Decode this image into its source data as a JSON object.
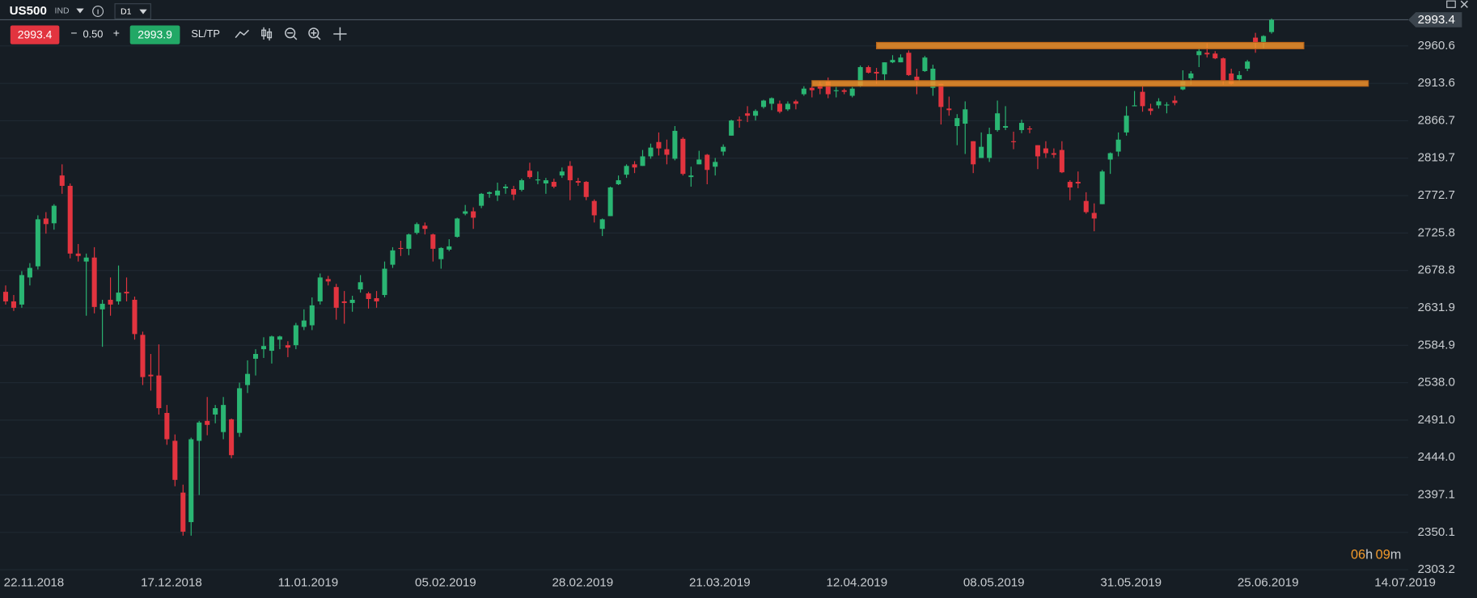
{
  "toolbar": {
    "symbol": "US500",
    "market": "IND",
    "timeframe": "D1",
    "sell": "2993.4",
    "minus": "−",
    "spread": "0.50",
    "plus": "+",
    "buy": "2993.9",
    "sltp": "SL/TP"
  },
  "countdown": {
    "hours": "06",
    "h": "h",
    "minutes": "09",
    "m": "m"
  },
  "chart_data": {
    "type": "candlestick",
    "up_color": "#2ab673",
    "down_color": "#e2343f",
    "grid": true,
    "last_price": 2993.4,
    "ylim": [
      2297.3,
      2993.4
    ],
    "yticks": [
      2303.2,
      2350.1,
      2397.1,
      {
        "value": 2444,
        "label": "2444.0"
      },
      {
        "value": 2491,
        "label": "2491.0"
      },
      {
        "value": 2538,
        "label": "2538.0"
      },
      2584.9,
      2631.9,
      2678.8,
      2725.8,
      2772.7,
      2819.7,
      2866.7,
      2913.6,
      2960.6
    ],
    "categories": [
      "22.11.2018",
      null,
      null,
      null,
      null,
      null,
      null,
      null,
      null,
      null,
      null,
      null,
      null,
      null,
      null,
      null,
      null,
      "17.12.2018",
      null,
      null,
      null,
      null,
      null,
      null,
      null,
      null,
      null,
      null,
      null,
      null,
      null,
      null,
      null,
      null,
      "11.01.2019",
      null,
      null,
      null,
      null,
      null,
      null,
      null,
      null,
      null,
      null,
      null,
      null,
      null,
      null,
      null,
      null,
      "05.02.2019",
      null,
      null,
      null,
      null,
      null,
      null,
      null,
      null,
      null,
      null,
      null,
      null,
      null,
      null,
      null,
      null,
      "28.02.2019",
      null,
      null,
      null,
      null,
      null,
      null,
      null,
      null,
      null,
      null,
      null,
      null,
      null,
      null,
      null,
      null,
      "21.03.2019",
      null,
      null,
      null,
      null,
      null,
      null,
      null,
      null,
      null,
      null,
      null,
      null,
      null,
      null,
      null,
      null,
      "12.04.2019",
      null,
      null,
      null,
      null,
      null,
      null,
      null,
      null,
      null,
      null,
      null,
      null,
      null,
      null,
      null,
      null,
      "08.05.2019",
      null,
      null,
      null,
      null,
      null,
      null,
      null,
      null,
      null,
      null,
      null,
      null,
      null,
      null,
      null,
      null,
      "31.05.2019",
      null,
      null,
      null,
      null,
      null,
      null,
      null,
      null,
      null,
      null,
      null,
      null,
      null,
      null,
      null,
      null,
      "25.06.2019",
      null,
      null,
      null,
      null,
      null,
      null,
      null,
      null,
      null,
      null,
      null,
      null,
      null,
      null,
      null,
      null,
      "14.07.2019"
    ],
    "open": [
      2652,
      2640,
      2636,
      2670,
      2684,
      2744,
      2738,
      2798,
      2785,
      2700,
      2690,
      2695,
      2630,
      2642,
      2640,
      2652,
      2642,
      2598,
      2548,
      2547,
      2500,
      2465,
      2400,
      2363,
      2465,
      2490,
      2498,
      2476,
      2492,
      2475,
      2535,
      2568,
      2580,
      2578,
      2592,
      2585,
      2585,
      2608,
      2610,
      2640,
      2668,
      2658,
      2640,
      2638,
      2655,
      2650,
      2644,
      2648,
      2686,
      2707,
      2706,
      2726,
      2735,
      2724,
      2693,
      2705,
      2721,
      2750,
      2753,
      2760,
      2775,
      2773,
      2782,
      2781,
      2780,
      2804,
      2792,
      2788,
      2790,
      2798,
      2810,
      2791,
      2790,
      2766,
      2731,
      2747,
      2787,
      2799,
      2812,
      2810,
      2822,
      2840,
      2831,
      2819,
      2844,
      2796,
      2812,
      2824,
      2809,
      2828,
      2848,
      2868,
      2876,
      2873,
      2884,
      2888,
      2888,
      2881,
      2891,
      2900,
      2908,
      2912,
      2916,
      2904,
      2905,
      2898,
      2910,
      2934,
      2928,
      2925,
      2940,
      2940,
      2952,
      2922,
      2929,
      2908,
      2913,
      2882,
      2860,
      2863,
      2841,
      2820,
      2820,
      2855,
      2858,
      2841,
      2855,
      2857,
      2836,
      2832,
      2826,
      2830,
      2790,
      2790,
      2766,
      2751,
      2762,
      2818,
      2828,
      2852,
      2885,
      2903,
      2882,
      2886,
      2886,
      2892,
      2906,
      2920,
      2949,
      2952,
      2951,
      2945,
      2926,
      2919,
      2932,
      2971,
      2964,
      2978,
      null,
      null,
      null,
      null,
      null,
      null,
      null,
      null,
      null,
      null,
      null,
      null,
      null
    ],
    "high": [
      2660,
      2648,
      2678,
      2688,
      2748,
      2752,
      2762,
      2812,
      2788,
      2712,
      2700,
      2708,
      2642,
      2670,
      2685,
      2670,
      2646,
      2602,
      2574,
      2586,
      2510,
      2473,
      2410,
      2469,
      2490,
      2520,
      2510,
      2520,
      2493,
      2538,
      2566,
      2580,
      2595,
      2597,
      2597,
      2590,
      2613,
      2630,
      2645,
      2675,
      2672,
      2662,
      2653,
      2647,
      2673,
      2652,
      2653,
      2690,
      2708,
      2716,
      2725,
      2739,
      2739,
      2725,
      2708,
      2718,
      2745,
      2761,
      2758,
      2776,
      2778,
      2789,
      2787,
      2785,
      2794,
      2814,
      2803,
      2795,
      2794,
      2808,
      2816,
      2795,
      2791,
      2768,
      2744,
      2784,
      2798,
      2812,
      2816,
      2830,
      2838,
      2852,
      2843,
      2860,
      2846,
      2809,
      2829,
      2825,
      2820,
      2837,
      2868,
      2872,
      2885,
      2881,
      2893,
      2896,
      2892,
      2891,
      2893,
      2910,
      2910,
      2916,
      2921,
      2909,
      2907,
      2909,
      2936,
      2936,
      2933,
      2940,
      2949,
      2950,
      2955,
      2932,
      2948,
      2937,
      2913,
      2897,
      2875,
      2891,
      2841,
      2852,
      2858,
      2892,
      2885,
      2853,
      2868,
      2860,
      2836,
      2841,
      2832,
      2841,
      2792,
      2803,
      2777,
      2763,
      2805,
      2827,
      2852,
      2885,
      2904,
      2910,
      2888,
      2895,
      2890,
      2898,
      2930,
      2929,
      2958,
      2964,
      2954,
      2946,
      2932,
      2929,
      2943,
      2977,
      2974,
      2995,
      null,
      null,
      null,
      null,
      null,
      null,
      null,
      null,
      null,
      null,
      null,
      null,
      null
    ],
    "low": [
      2636,
      2628,
      2632,
      2660,
      2680,
      2725,
      2730,
      2775,
      2694,
      2690,
      2622,
      2625,
      2583,
      2622,
      2636,
      2640,
      2592,
      2535,
      2528,
      2498,
      2460,
      2408,
      2346,
      2346,
      2397,
      2472,
      2487,
      2467,
      2443,
      2470,
      2525,
      2547,
      2569,
      2562,
      2580,
      2570,
      2580,
      2604,
      2604,
      2636,
      2660,
      2617,
      2612,
      2627,
      2651,
      2631,
      2632,
      2645,
      2682,
      2697,
      2698,
      2724,
      2724,
      2690,
      2681,
      2703,
      2720,
      2748,
      2731,
      2757,
      2770,
      2766,
      2775,
      2767,
      2778,
      2794,
      2787,
      2775,
      2782,
      2795,
      2767,
      2785,
      2767,
      2739,
      2722,
      2747,
      2786,
      2795,
      2801,
      2810,
      2819,
      2823,
      2812,
      2817,
      2798,
      2784,
      2812,
      2787,
      2798,
      2823,
      2848,
      2858,
      2865,
      2867,
      2882,
      2880,
      2876,
      2879,
      2881,
      2898,
      2896,
      2900,
      2895,
      2896,
      2900,
      2896,
      2909,
      2926,
      2913,
      2917,
      2939,
      2940,
      2923,
      2900,
      2928,
      2898,
      2862,
      2873,
      2836,
      2825,
      2801,
      2820,
      2815,
      2853,
      2855,
      2831,
      2851,
      2851,
      2806,
      2820,
      2820,
      2801,
      2767,
      2782,
      2750,
      2728,
      2762,
      2800,
      2822,
      2848,
      2885,
      2878,
      2874,
      2882,
      2876,
      2886,
      2905,
      2912,
      2934,
      2946,
      2944,
      2912,
      2912,
      2916,
      2929,
      2952,
      2957,
      2976,
      null,
      null,
      null,
      null,
      null,
      null,
      null,
      null,
      null,
      null,
      null,
      null,
      null
    ],
    "close": [
      2640,
      2632,
      2673,
      2682,
      2743,
      2737,
      2760,
      2785,
      2700,
      2697,
      2695,
      2633,
      2637,
      2636,
      2651,
      2650,
      2599,
      2545,
      2546,
      2506,
      2467,
      2416,
      2351,
      2467,
      2488,
      2485,
      2506,
      2510,
      2447,
      2531,
      2549,
      2574,
      2584,
      2596,
      2596,
      2582,
      2610,
      2616,
      2635,
      2670,
      2665,
      2632,
      2638,
      2642,
      2664,
      2643,
      2640,
      2681,
      2704,
      2706,
      2724,
      2737,
      2731,
      2706,
      2707,
      2709,
      2744,
      2753,
      2745,
      2775,
      2777,
      2779,
      2784,
      2774,
      2792,
      2796,
      2793,
      2792,
      2784,
      2803,
      2792,
      2789,
      2771,
      2748,
      2743,
      2783,
      2792,
      2810,
      2808,
      2822,
      2833,
      2832,
      2824,
      2854,
      2800,
      2798,
      2818,
      2805,
      2815,
      2834,
      2867,
      2867,
      2873,
      2879,
      2892,
      2895,
      2878,
      2888,
      2888,
      2907,
      2905,
      2907,
      2900,
      2905,
      2903,
      2907,
      2934,
      2927,
      2926,
      2940,
      2943,
      2946,
      2924,
      2917,
      2946,
      2932,
      2884,
      2880,
      2870,
      2881,
      2812,
      2834,
      2850,
      2876,
      2860,
      2840,
      2864,
      2856,
      2822,
      2826,
      2824,
      2802,
      2783,
      2788,
      2752,
      2744,
      2803,
      2826,
      2843,
      2873,
      2886,
      2885,
      2879,
      2891,
      2887,
      2889,
      2917,
      2926,
      2954,
      2950,
      2945,
      2917,
      2913,
      2924,
      2941,
      2964,
      2973,
      2993.4,
      null,
      null,
      null,
      null,
      null,
      null,
      null,
      null,
      null,
      null,
      null,
      null,
      null
    ],
    "zones": [
      {
        "low": 2957,
        "high": 2965,
        "start": 108,
        "end": 161,
        "color": "#f0902a"
      },
      {
        "low": 2910,
        "high": 2917,
        "start": 100,
        "end": 169,
        "color": "#f0902a"
      }
    ]
  }
}
